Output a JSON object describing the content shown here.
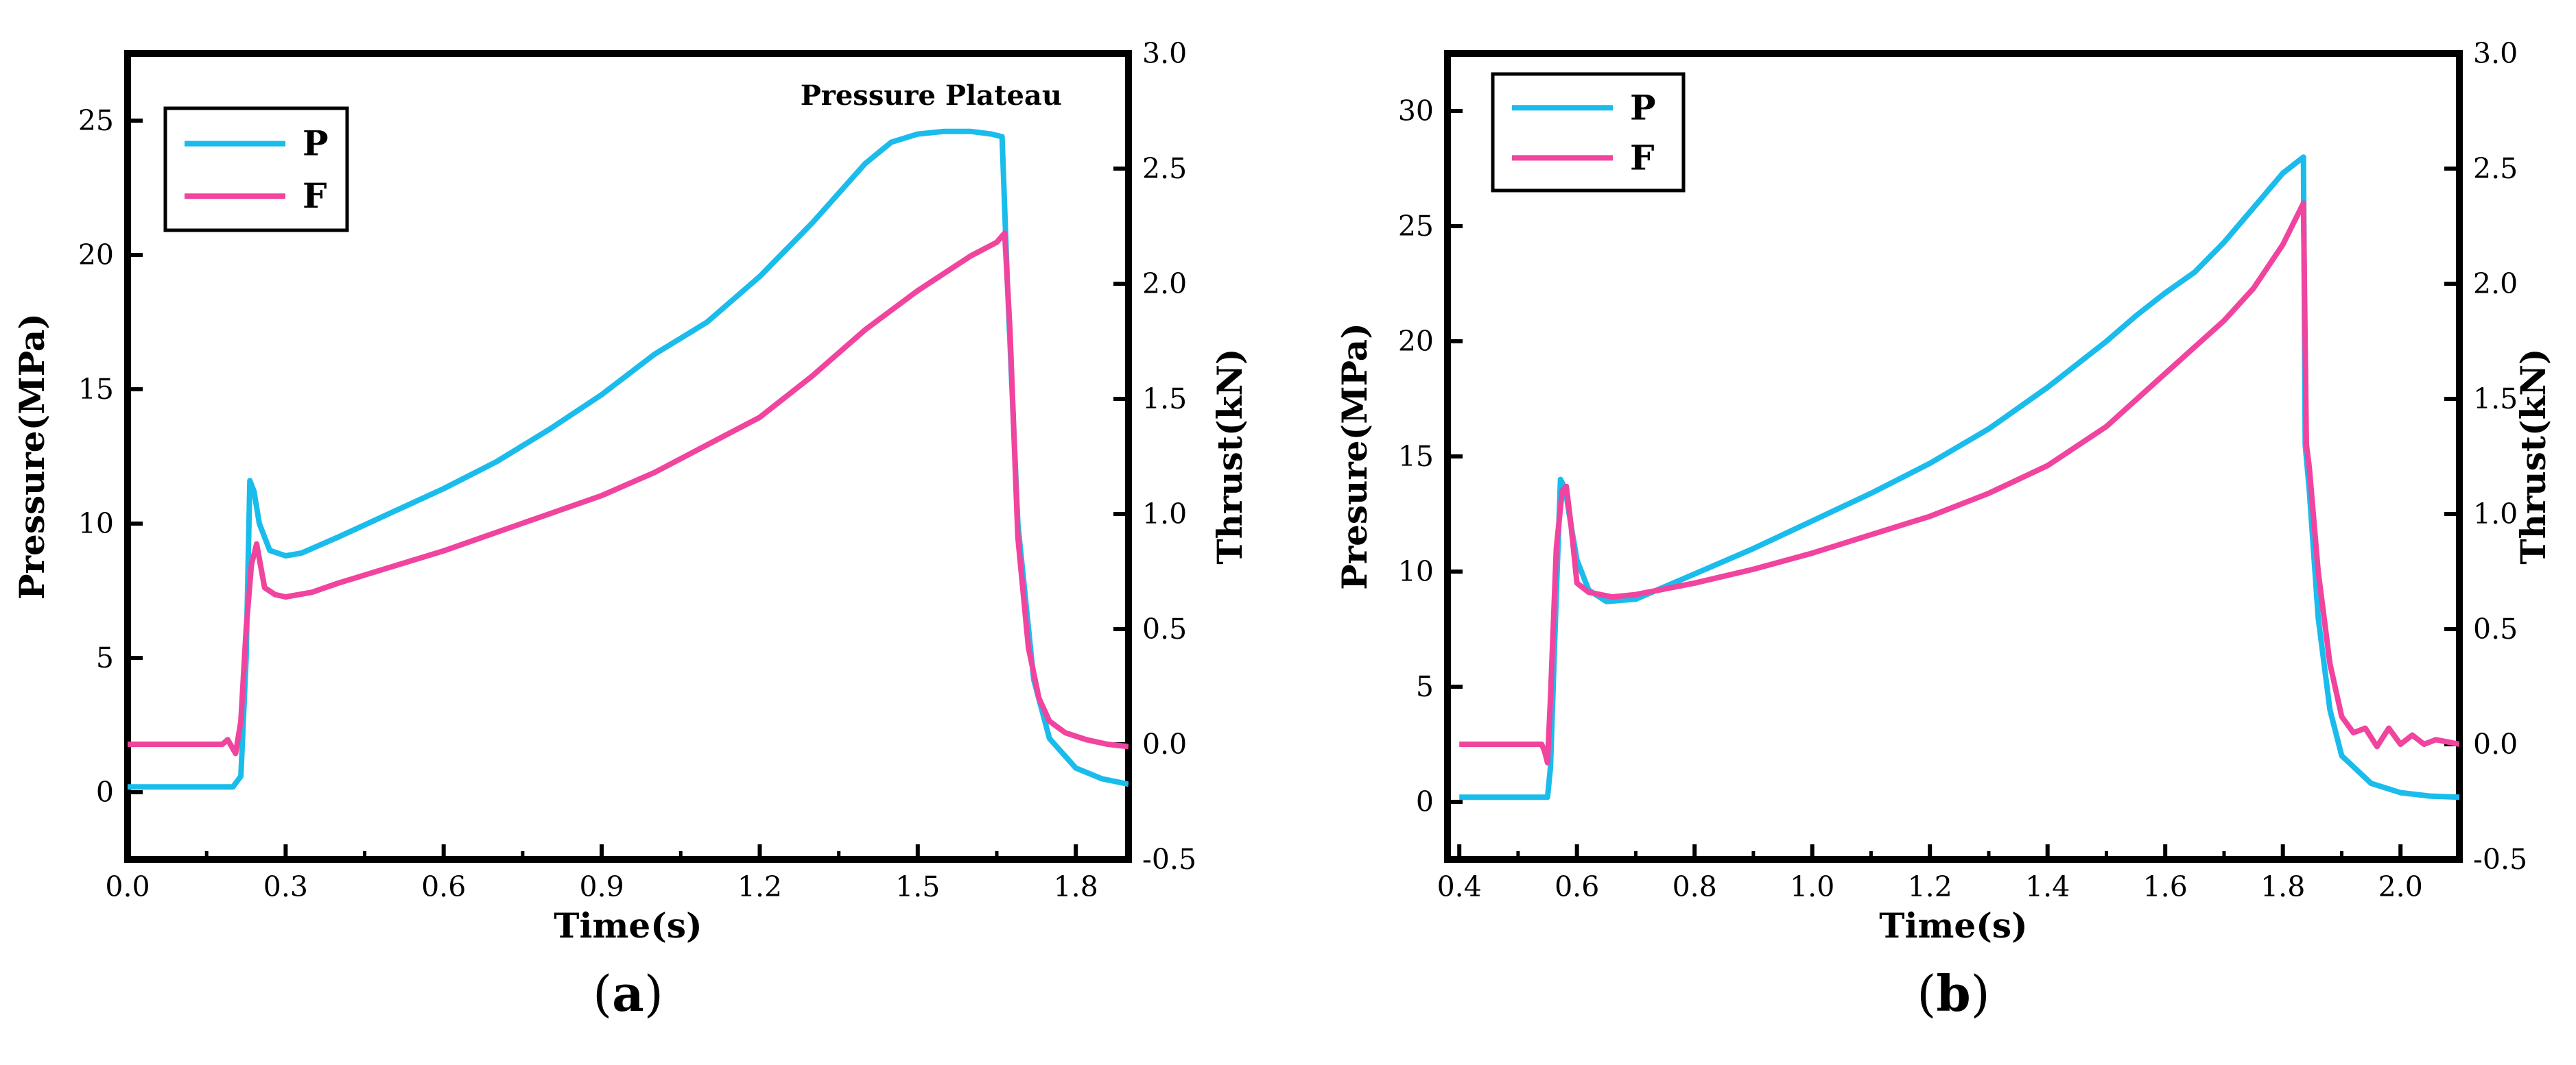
{
  "chart_data": [
    {
      "type": "line",
      "panel": "a",
      "caption": "(a)",
      "caption_letter": "a",
      "xlabel": "Time(s)",
      "ylabel": "Pressure(MPa)",
      "y2label": "Thrust(kN)",
      "xlim": [
        0.0,
        1.9
      ],
      "ylim": [
        -2.5,
        27.5
      ],
      "y2lim": [
        -0.5,
        3.0
      ],
      "xticks": [
        0.0,
        0.3,
        0.6,
        0.9,
        1.2,
        1.5,
        1.8
      ],
      "xtick_labels": [
        "0.0",
        "0.3",
        "0.6",
        "0.9",
        "1.2",
        "1.5",
        "1.8"
      ],
      "yticks": [
        0,
        5,
        10,
        15,
        20,
        25
      ],
      "ytick_labels": [
        "0",
        "5",
        "10",
        "15",
        "20",
        "25"
      ],
      "y2ticks": [
        -0.5,
        0.0,
        0.5,
        1.0,
        1.5,
        2.0,
        2.5,
        3.0
      ],
      "y2tick_labels": [
        "-0.5",
        "0.0",
        "0.5",
        "1.0",
        "1.5",
        "2.0",
        "2.5",
        "3.0"
      ],
      "annotation": "Pressure Plateau",
      "legend": {
        "placement": "top-left",
        "entries": [
          "P",
          "F"
        ]
      },
      "series": [
        {
          "name": "P",
          "axis": "left",
          "color": "#1ABCEC",
          "x": [
            0.0,
            0.2,
            0.215,
            0.225,
            0.232,
            0.24,
            0.25,
            0.27,
            0.3,
            0.33,
            0.4,
            0.5,
            0.6,
            0.7,
            0.8,
            0.9,
            1.0,
            1.1,
            1.2,
            1.3,
            1.4,
            1.45,
            1.5,
            1.55,
            1.6,
            1.64,
            1.66,
            1.67,
            1.69,
            1.72,
            1.75,
            1.8,
            1.85,
            1.9
          ],
          "values": [
            0.2,
            0.2,
            0.6,
            5.0,
            11.6,
            11.2,
            10.0,
            9.0,
            8.8,
            8.9,
            9.5,
            10.4,
            11.3,
            12.3,
            13.5,
            14.8,
            16.3,
            17.5,
            19.2,
            21.2,
            23.4,
            24.2,
            24.5,
            24.6,
            24.6,
            24.5,
            24.4,
            19.0,
            10.0,
            4.2,
            2.0,
            0.9,
            0.5,
            0.3
          ]
        },
        {
          "name": "F",
          "axis": "right",
          "color": "#F0449E",
          "x": [
            0.0,
            0.18,
            0.19,
            0.2,
            0.205,
            0.215,
            0.225,
            0.235,
            0.245,
            0.26,
            0.28,
            0.3,
            0.35,
            0.4,
            0.5,
            0.6,
            0.7,
            0.8,
            0.9,
            1.0,
            1.1,
            1.2,
            1.3,
            1.4,
            1.5,
            1.6,
            1.65,
            1.665,
            1.675,
            1.69,
            1.71,
            1.73,
            1.75,
            1.78,
            1.82,
            1.86,
            1.9
          ],
          "values": [
            0.0,
            0.0,
            0.02,
            -0.02,
            -0.04,
            0.1,
            0.5,
            0.78,
            0.87,
            0.68,
            0.65,
            0.64,
            0.66,
            0.7,
            0.77,
            0.84,
            0.92,
            1.0,
            1.08,
            1.18,
            1.3,
            1.42,
            1.6,
            1.8,
            1.97,
            2.12,
            2.18,
            2.22,
            1.8,
            0.9,
            0.42,
            0.2,
            0.1,
            0.05,
            0.02,
            0.0,
            -0.01
          ]
        }
      ]
    },
    {
      "type": "line",
      "panel": "b",
      "caption": "(b)",
      "caption_letter": "b",
      "xlabel": "Time(s)",
      "ylabel": "Presure(MPa)",
      "y2label": "Thrust(kN)",
      "xlim": [
        0.38,
        2.1
      ],
      "ylim": [
        -2.5,
        32.5
      ],
      "y2lim": [
        -0.5,
        3.0
      ],
      "xticks": [
        0.4,
        0.6,
        0.8,
        1.0,
        1.2,
        1.4,
        1.6,
        1.8,
        2.0
      ],
      "xtick_labels": [
        "0.4",
        "0.6",
        "0.8",
        "1.0",
        "1.2",
        "1.4",
        "1.6",
        "1.8",
        "2.0"
      ],
      "yticks": [
        0,
        5,
        10,
        15,
        20,
        25,
        30
      ],
      "ytick_labels": [
        "0",
        "5",
        "10",
        "15",
        "20",
        "25",
        "30"
      ],
      "y2ticks": [
        -0.5,
        0.0,
        0.5,
        1.0,
        1.5,
        2.0,
        2.5,
        3.0
      ],
      "y2tick_labels": [
        "-0.5",
        "0.0",
        "0.5",
        "1.0",
        "1.5",
        "2.0",
        "2.5",
        "3.0"
      ],
      "legend": {
        "placement": "top-left",
        "entries": [
          "P",
          "F"
        ]
      },
      "series": [
        {
          "name": "P",
          "axis": "left",
          "color": "#1ABCEC",
          "x": [
            0.4,
            0.55,
            0.555,
            0.565,
            0.572,
            0.58,
            0.59,
            0.6,
            0.62,
            0.65,
            0.7,
            0.8,
            0.9,
            1.0,
            1.1,
            1.2,
            1.3,
            1.4,
            1.5,
            1.55,
            1.6,
            1.65,
            1.7,
            1.75,
            1.8,
            1.835,
            1.838,
            1.845,
            1.86,
            1.88,
            1.9,
            1.95,
            2.0,
            2.05,
            2.1
          ],
          "values": [
            0.2,
            0.2,
            1.5,
            9.0,
            14.0,
            13.6,
            12.0,
            10.5,
            9.2,
            8.7,
            8.8,
            9.9,
            11.0,
            12.2,
            13.4,
            14.7,
            16.2,
            18.0,
            20.0,
            21.1,
            22.1,
            23.0,
            24.3,
            25.8,
            27.3,
            28.0,
            15.5,
            13.5,
            8.0,
            4.0,
            2.0,
            0.8,
            0.4,
            0.25,
            0.2
          ]
        },
        {
          "name": "F",
          "axis": "right",
          "color": "#F0449E",
          "x": [
            0.4,
            0.54,
            0.545,
            0.55,
            0.555,
            0.565,
            0.575,
            0.582,
            0.59,
            0.6,
            0.62,
            0.66,
            0.7,
            0.8,
            0.9,
            1.0,
            1.1,
            1.2,
            1.3,
            1.4,
            1.5,
            1.6,
            1.7,
            1.75,
            1.8,
            1.835,
            1.84,
            1.845,
            1.86,
            1.88,
            1.9,
            1.92,
            1.94,
            1.96,
            1.98,
            2.0,
            2.02,
            2.04,
            2.06,
            2.08,
            2.1
          ],
          "values": [
            0.0,
            0.0,
            -0.03,
            -0.08,
            0.2,
            0.85,
            1.1,
            1.12,
            0.95,
            0.7,
            0.66,
            0.64,
            0.65,
            0.7,
            0.76,
            0.83,
            0.91,
            0.99,
            1.09,
            1.21,
            1.38,
            1.61,
            1.84,
            1.98,
            2.17,
            2.35,
            1.3,
            1.2,
            0.75,
            0.35,
            0.12,
            0.05,
            0.07,
            -0.01,
            0.07,
            0.0,
            0.04,
            0.0,
            0.02,
            0.01,
            0.0
          ]
        }
      ]
    }
  ]
}
